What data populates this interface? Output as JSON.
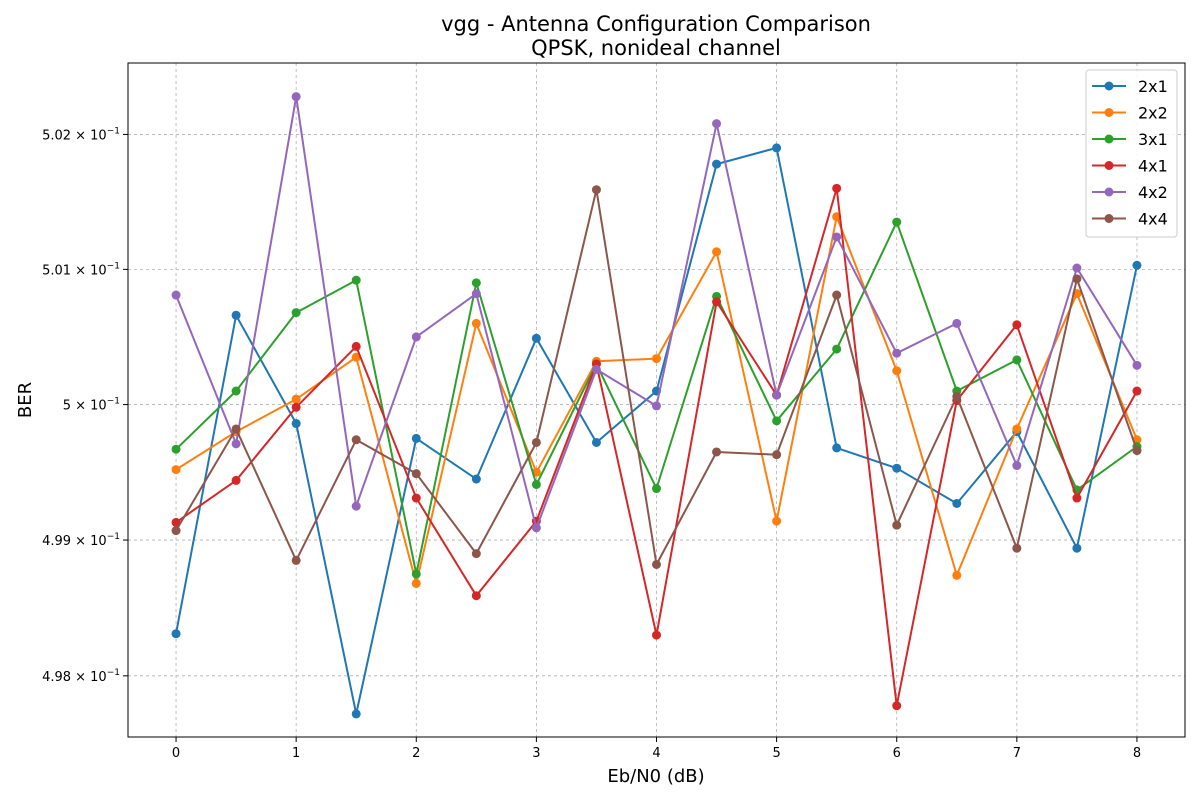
{
  "chart_data": {
    "type": "line",
    "title": "vgg - Antenna Configuration Comparison",
    "subtitle": "QPSK, nonideal channel",
    "xlabel": "Eb/N0 (dB)",
    "ylabel": "BER",
    "yscale": "log",
    "xlim": [
      -0.4,
      8.4
    ],
    "ylim": [
      0.49755,
      0.50253
    ],
    "grid": true,
    "legend_position": "top-right",
    "x_ticks": [
      0,
      1,
      2,
      3,
      4,
      5,
      6,
      7,
      8
    ],
    "x_tick_labels": [
      "0",
      "1",
      "2",
      "3",
      "4",
      "5",
      "6",
      "7",
      "8"
    ],
    "y_ticks": [
      0.498,
      0.499,
      0.5,
      0.501,
      0.502
    ],
    "y_tick_labels": [
      {
        "base": "4.98 × 10",
        "exp": "−1"
      },
      {
        "base": "4.99 × 10",
        "exp": "−1"
      },
      {
        "base": "5 × 10",
        "exp": "−1"
      },
      {
        "base": "5.01 × 10",
        "exp": "−1"
      },
      {
        "base": "5.02 × 10",
        "exp": "−1"
      }
    ],
    "x": [
      0,
      0.5,
      1,
      1.5,
      2,
      2.5,
      3,
      3.5,
      4,
      4.5,
      5,
      5.5,
      6,
      6.5,
      7,
      7.5,
      8
    ],
    "series": [
      {
        "name": "2x1",
        "color": "#1f77b4",
        "values": [
          0.49831,
          0.50066,
          0.49986,
          0.49772,
          0.49975,
          0.49945,
          0.50049,
          0.49972,
          0.5001,
          0.50178,
          0.5019,
          0.49968,
          0.49953,
          0.49927,
          0.4998,
          0.49894,
          0.50103
        ]
      },
      {
        "name": "2x2",
        "color": "#ff7f0e",
        "values": [
          0.49952,
          0.4998,
          0.50004,
          0.50035,
          0.49868,
          0.5006,
          0.4995,
          0.50032,
          0.50034,
          0.50113,
          0.49914,
          0.50139,
          0.50025,
          0.49874,
          0.49982,
          0.50082,
          0.49974
        ]
      },
      {
        "name": "3x1",
        "color": "#2ca02c",
        "values": [
          0.49967,
          0.5001,
          0.50068,
          0.50092,
          0.49875,
          0.5009,
          0.49941,
          0.5003,
          0.49938,
          0.5008,
          0.49988,
          0.50041,
          0.50135,
          0.5001,
          0.50033,
          0.49937,
          0.49969
        ]
      },
      {
        "name": "4x1",
        "color": "#d62728",
        "values": [
          0.49913,
          0.49944,
          0.49998,
          0.50043,
          0.49931,
          0.49859,
          0.49914,
          0.5003,
          0.4983,
          0.50076,
          0.50007,
          0.5016,
          0.49778,
          0.50003,
          0.50059,
          0.49931,
          0.5001
        ]
      },
      {
        "name": "4x2",
        "color": "#9467bd",
        "values": [
          0.50081,
          0.49971,
          0.50228,
          0.49925,
          0.5005,
          0.50082,
          0.49909,
          0.50026,
          0.49999,
          0.50208,
          0.50007,
          0.50124,
          0.50038,
          0.5006,
          0.49955,
          0.50101,
          0.50029
        ]
      },
      {
        "name": "4x4",
        "color": "#8c564b",
        "values": [
          0.49907,
          0.49982,
          0.49885,
          0.49974,
          0.49949,
          0.4989,
          0.49972,
          0.50159,
          0.49882,
          0.49965,
          0.49963,
          0.50081,
          0.49911,
          0.50006,
          0.49894,
          0.50093,
          0.49966
        ]
      }
    ]
  }
}
